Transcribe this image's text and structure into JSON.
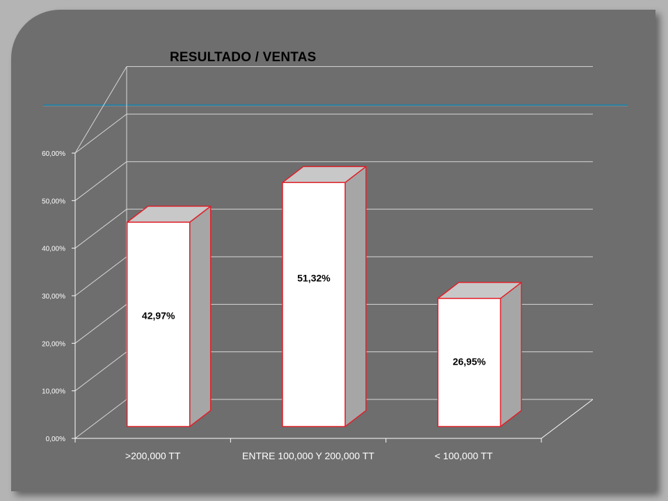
{
  "slide": {
    "background_color": "#6e6e6e",
    "page_color": "#b4b4b4"
  },
  "chart_data": {
    "type": "bar",
    "title": "RESULTADO / VENTAS",
    "categories": [
      ">200,000 TT",
      "ENTRE 100,000 Y 200,000 TT",
      "< 100,000 TT"
    ],
    "values": [
      42.97,
      51.32,
      26.95
    ],
    "data_labels": [
      "42,97%",
      "51,32%",
      "26,95%"
    ],
    "y_ticks": [
      "0,00%",
      "10,00%",
      "20,00%",
      "30,00%",
      "40,00%",
      "50,00%",
      "60,00%"
    ],
    "ylim": [
      0,
      60
    ],
    "xlabel": "",
    "ylabel": "",
    "grid": true,
    "legend": "none",
    "style": "3d-column",
    "colors": {
      "bar_front": "#ffffff",
      "bar_side": "#a6a6a6",
      "bar_top": "#c8c8c8",
      "bar_outline": "#e0202a",
      "grid": "#d8d8d8",
      "axis": "#ffffff"
    }
  }
}
